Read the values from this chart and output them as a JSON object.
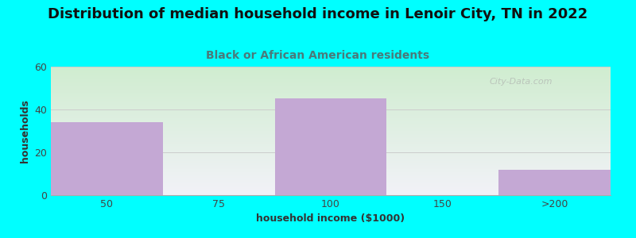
{
  "title": "Distribution of median household income in Lenoir City, TN in 2022",
  "subtitle": "Black or African American residents",
  "xlabel": "household income ($1000)",
  "ylabel": "households",
  "categories": [
    "50",
    "75",
    "100",
    "150",
    ">200"
  ],
  "values": [
    34,
    0,
    45,
    0,
    12
  ],
  "bar_color": "#C4A8D4",
  "background_color": "#00FFFF",
  "plot_bg_top_left": "#d4f0d4",
  "plot_bg_bottom_right": "#f0f0f8",
  "ylim": [
    0,
    60
  ],
  "yticks": [
    0,
    20,
    40,
    60
  ],
  "title_fontsize": 13,
  "subtitle_fontsize": 10,
  "axis_label_fontsize": 9,
  "tick_fontsize": 9,
  "subtitle_color": "#4a7a7a",
  "title_color": "#111111",
  "watermark": "City-Data.com"
}
